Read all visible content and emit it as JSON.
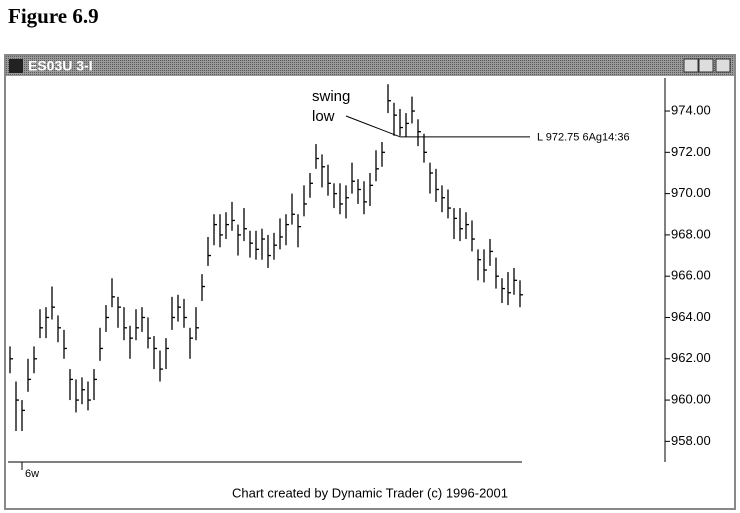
{
  "figure_title": "Figure 6.9",
  "window": {
    "title": "ES03U 3-I"
  },
  "chart_data": {
    "type": "ohlc",
    "high": [
      962.6,
      960.9,
      960.0,
      962.0,
      962.6,
      964.4,
      964.5,
      965.5,
      964.1,
      963.4,
      961.5,
      961.0,
      961.1,
      960.9,
      961.5,
      963.5,
      964.6,
      965.9,
      965.0,
      964.5,
      963.6,
      964.4,
      964.5,
      964.0,
      963.1,
      962.4,
      963.0,
      965.0,
      965.1,
      964.9,
      963.5,
      964.5,
      966.1,
      967.9,
      969.0,
      969.0,
      969.1,
      969.6,
      968.5,
      969.3,
      968.2,
      968.2,
      968.3,
      968.0,
      968.1,
      968.8,
      969.0,
      970.0,
      969.0,
      970.4,
      971.0,
      972.4,
      971.9,
      971.4,
      970.5,
      970.5,
      970.4,
      971.5,
      970.7,
      970.6,
      971.0,
      972.1,
      972.5,
      975.3,
      974.4,
      974.1,
      973.9,
      974.7,
      973.6,
      972.9,
      971.5,
      971.2,
      970.4,
      970.2,
      969.3,
      969.3,
      969.1,
      968.7,
      967.3,
      967.3,
      967.8,
      966.9,
      965.9,
      966.2,
      966.4,
      965.8
    ],
    "low": [
      961.3,
      958.5,
      958.5,
      960.4,
      961.3,
      963.0,
      963.0,
      963.9,
      962.8,
      962.0,
      960.0,
      959.4,
      959.8,
      959.5,
      960.0,
      961.9,
      963.3,
      964.5,
      963.5,
      962.9,
      962.0,
      962.9,
      963.3,
      962.5,
      961.5,
      960.9,
      961.5,
      963.4,
      963.8,
      963.5,
      962.0,
      962.9,
      964.8,
      966.5,
      967.5,
      967.4,
      967.8,
      968.2,
      967.0,
      967.7,
      966.9,
      966.8,
      966.8,
      966.4,
      966.8,
      967.3,
      967.5,
      968.5,
      967.4,
      968.9,
      969.8,
      971.2,
      970.3,
      969.9,
      969.3,
      969.0,
      968.8,
      970.0,
      969.5,
      969.0,
      969.4,
      970.6,
      971.3,
      973.9,
      972.8,
      972.8,
      972.75,
      973.4,
      972.3,
      971.5,
      970.0,
      969.6,
      969.1,
      968.8,
      967.8,
      967.7,
      967.8,
      967.2,
      965.8,
      965.7,
      966.5,
      965.4,
      964.7,
      964.6,
      965.1,
      964.5
    ],
    "close": [
      962,
      960,
      959.5,
      961,
      962,
      963.5,
      964,
      964.5,
      963.5,
      962.5,
      961,
      960,
      960.5,
      960,
      961,
      962.5,
      964,
      965,
      964.5,
      963.5,
      963,
      963.5,
      964,
      963,
      962.5,
      961.5,
      962.5,
      964,
      964.5,
      964,
      963,
      963.5,
      965.5,
      967,
      968.5,
      968,
      968.5,
      968.7,
      968,
      968.3,
      967.6,
      967.3,
      967.8,
      967,
      967.5,
      967.9,
      968.5,
      969,
      968.4,
      969.5,
      970.5,
      971.7,
      971.3,
      970.5,
      970,
      969.5,
      969.8,
      970.6,
      970.2,
      969.6,
      970.4,
      971.2,
      972,
      974.5,
      973.8,
      973.2,
      973.4,
      974,
      973,
      972,
      971,
      970.2,
      969.8,
      969.3,
      968.8,
      968.3,
      968.5,
      967.8,
      966.8,
      966.3,
      967.2,
      966,
      965.4,
      965.2,
      965.8,
      965.1
    ],
    "ylim": [
      957,
      975.6
    ],
    "yticks": [
      {
        "value": 958,
        "label": "958.00"
      },
      {
        "value": 960,
        "label": "960.00"
      },
      {
        "value": 962,
        "label": "962.00"
      },
      {
        "value": 964,
        "label": "964.00"
      },
      {
        "value": 966,
        "label": "966.00"
      },
      {
        "value": 968,
        "label": "968.00"
      },
      {
        "value": 970,
        "label": "970.00"
      },
      {
        "value": 972,
        "label": "972.00"
      },
      {
        "value": 974,
        "label": "974.00"
      }
    ],
    "x_label": "6w",
    "annotation": [
      "swing",
      "low"
    ],
    "level": {
      "label": "L 972.75 6Ag14:36",
      "value": 972.75
    },
    "footer": "Chart created by Dynamic Trader (c) 1996-2001"
  }
}
